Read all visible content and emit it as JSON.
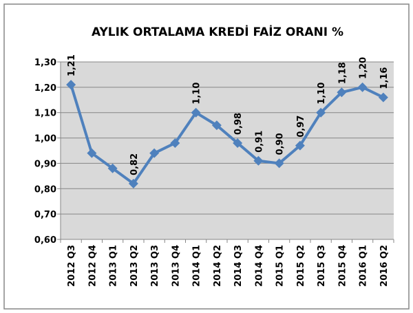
{
  "chart_data": {
    "type": "line",
    "title": "AYLIK ORTALAMA KREDİ FAİZ ORANI %",
    "categories": [
      "2012 Q3",
      "2012 Q4",
      "2013 Q1",
      "2013 Q2",
      "2013 Q3",
      "2013 Q4",
      "2014 Q1",
      "2014 Q2",
      "2014 Q3",
      "2014 Q4",
      "2015 Q1",
      "2015 Q2",
      "2015 Q3",
      "2015 Q4",
      "2016 Q1",
      "2016 Q2"
    ],
    "series": [
      {
        "name": "AYLIK ORTALAMA KREDİ FAİZ ORANI %",
        "color": "#4f81bd",
        "values": [
          1.21,
          0.94,
          0.88,
          0.82,
          0.94,
          0.98,
          1.1,
          1.05,
          0.98,
          0.91,
          0.9,
          0.97,
          1.1,
          1.18,
          1.2,
          1.16
        ],
        "value_labels": [
          "1,21",
          null,
          null,
          "0,82",
          null,
          null,
          "1,10",
          null,
          "0,98",
          "0,91",
          "0,90",
          "0,97",
          "1,10",
          "1,18",
          "1,20",
          "1,16"
        ]
      }
    ],
    "ylim": [
      0.6,
      1.3
    ],
    "yticks": [
      {
        "value": 0.6,
        "label": "0,60"
      },
      {
        "value": 0.7,
        "label": "0,70"
      },
      {
        "value": 0.8,
        "label": "0,80"
      },
      {
        "value": 0.9,
        "label": "0,90"
      },
      {
        "value": 1.0,
        "label": "1,00"
      },
      {
        "value": 1.1,
        "label": "1,10"
      },
      {
        "value": 1.2,
        "label": "1,20"
      },
      {
        "value": 1.3,
        "label": "1,30"
      }
    ],
    "grid": true
  }
}
